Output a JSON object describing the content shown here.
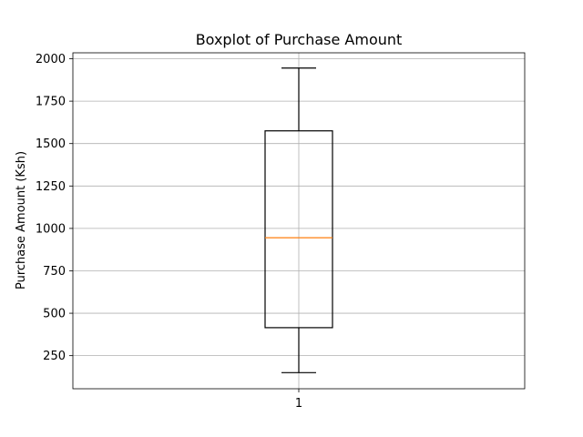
{
  "chart_data": {
    "type": "box",
    "title": "Boxplot of Purchase Amount",
    "xlabel": "",
    "ylabel": "Purchase Amount (Ksh)",
    "categories": [
      "1"
    ],
    "boxes": [
      {
        "category": "1",
        "whisker_low": 150,
        "q1": 415,
        "median": 945,
        "q3": 1575,
        "whisker_high": 1945
      }
    ],
    "ylim": [
      55,
      2035
    ],
    "yticks": [
      250,
      500,
      750,
      1000,
      1250,
      1500,
      1750,
      2000
    ],
    "ytick_labels": [
      "250",
      "500",
      "750",
      "1000",
      "1250",
      "1500",
      "1750",
      "2000"
    ],
    "grid": true,
    "colors": {
      "box": "#000000",
      "median": "#ff7f0e",
      "grid": "#b0b0b0"
    }
  }
}
